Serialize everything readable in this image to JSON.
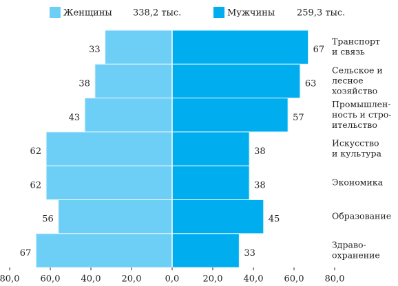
{
  "chart_data": {
    "type": "bar",
    "orientation": "horizontal-pyramid",
    "categories": [
      [
        "Транспорт",
        "и связь"
      ],
      [
        "Сельское и",
        "лесное",
        "хозяйство"
      ],
      [
        "Промышлен-",
        "ность и стро-",
        "ительство"
      ],
      [
        "Искусство",
        "и культура"
      ],
      [
        "Экономика"
      ],
      [
        "Образование"
      ],
      [
        "Здраво-",
        "охранение"
      ]
    ],
    "series": [
      {
        "name": "Женщины",
        "total": "338,2 тыс.",
        "color": "#6dcff6",
        "side": "left",
        "values": [
          33,
          38,
          43,
          62,
          62,
          56,
          67
        ]
      },
      {
        "name": "Мужчины",
        "total": "259,3 тыс.",
        "color": "#00aeef",
        "side": "right",
        "values": [
          67,
          63,
          57,
          38,
          38,
          45,
          33
        ]
      }
    ],
    "xlim": [
      -80,
      80
    ],
    "xticks": [
      {
        "value": -80,
        "label": "80,0"
      },
      {
        "value": -60,
        "label": "60,0"
      },
      {
        "value": -40,
        "label": "40,0"
      },
      {
        "value": -20,
        "label": "20,0"
      },
      {
        "value": 0,
        "label": "0,0"
      },
      {
        "value": 20,
        "label": "20,0"
      },
      {
        "value": 40,
        "label": "40,0"
      },
      {
        "value": 60,
        "label": "60,0"
      },
      {
        "value": 80,
        "label": "80,0"
      }
    ],
    "legend": "top"
  }
}
